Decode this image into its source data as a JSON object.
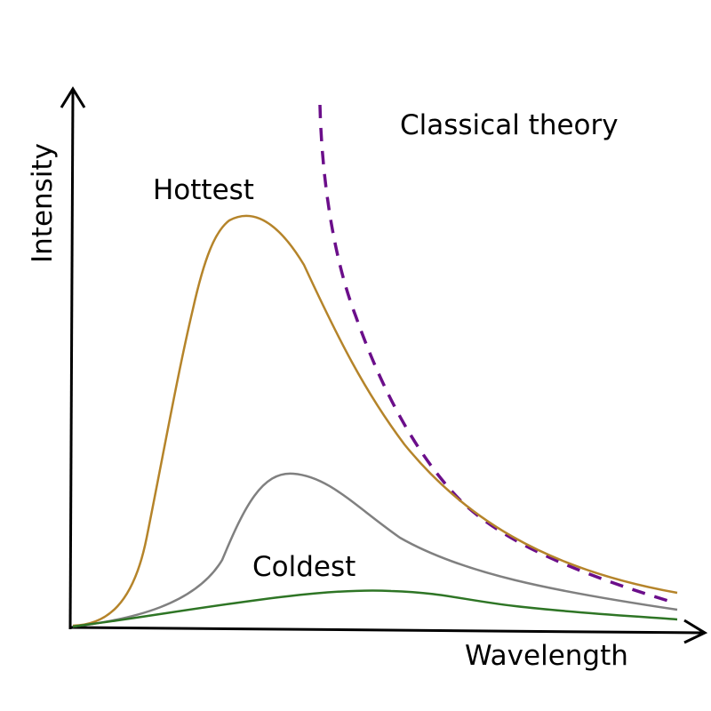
{
  "labels": {
    "x_axis": "Wavelength",
    "y_axis": "Intensity",
    "hottest": "Hottest",
    "coldest": "Coldest",
    "classical": "Classical theory"
  },
  "colors": {
    "axis": "#000000",
    "hottest_curve": "#b5842a",
    "middle_curve": "#808080",
    "coldest_curve": "#2e7525",
    "classical_curve": "#6b0e8a"
  },
  "curves": [
    {
      "name": "hottest-curve",
      "style": "solid",
      "color_key": "hottest_curve"
    },
    {
      "name": "middle-curve",
      "style": "solid",
      "color_key": "middle_curve"
    },
    {
      "name": "coldest-curve",
      "style": "solid",
      "color_key": "coldest_curve"
    },
    {
      "name": "classical-theory-curve",
      "style": "dashed",
      "color_key": "classical_curve"
    }
  ]
}
